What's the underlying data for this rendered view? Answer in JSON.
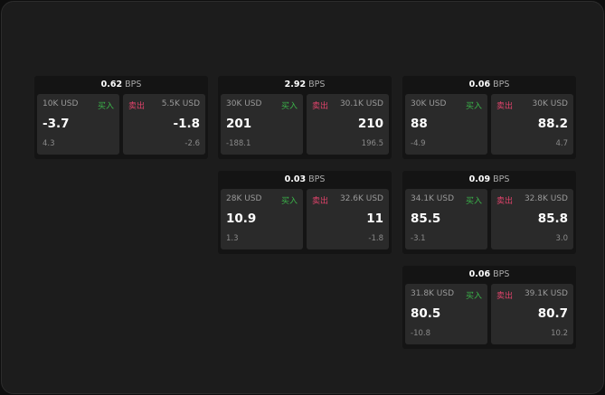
{
  "colors": {
    "buy": "#3bb54a",
    "sell": "#e0436b",
    "background": "#1c1c1c"
  },
  "unit": "BPS",
  "widgets": [
    {
      "spread": "0.62",
      "buy": {
        "size": "10K USD",
        "label": "买入",
        "price": "-3.7",
        "change": "4.3"
      },
      "sell": {
        "size": "5.5K USD",
        "label": "卖出",
        "price": "-1.8",
        "change": "-2.6"
      }
    },
    {
      "spread": "2.92",
      "buy": {
        "size": "30K USD",
        "label": "买入",
        "price": "201",
        "change": "-188.1"
      },
      "sell": {
        "size": "30.1K USD",
        "label": "卖出",
        "price": "210",
        "change": "196.5"
      }
    },
    {
      "spread": "0.06",
      "buy": {
        "size": "30K USD",
        "label": "买入",
        "price": "88",
        "change": "-4.9"
      },
      "sell": {
        "size": "30K USD",
        "label": "卖出",
        "price": "88.2",
        "change": "4.7"
      }
    },
    {
      "spread": "0.03",
      "buy": {
        "size": "28K USD",
        "label": "买入",
        "price": "10.9",
        "change": "1.3"
      },
      "sell": {
        "size": "32.6K USD",
        "label": "卖出",
        "price": "11",
        "change": "-1.8"
      }
    },
    {
      "spread": "0.09",
      "buy": {
        "size": "34.1K USD",
        "label": "买入",
        "price": "85.5",
        "change": "-3.1"
      },
      "sell": {
        "size": "32.8K USD",
        "label": "卖出",
        "price": "85.8",
        "change": "3.0"
      }
    },
    {
      "spread": "0.06",
      "buy": {
        "size": "31.8K USD",
        "label": "买入",
        "price": "80.5",
        "change": "-10.8"
      },
      "sell": {
        "size": "39.1K USD",
        "label": "卖出",
        "price": "80.7",
        "change": "10.2"
      }
    }
  ]
}
